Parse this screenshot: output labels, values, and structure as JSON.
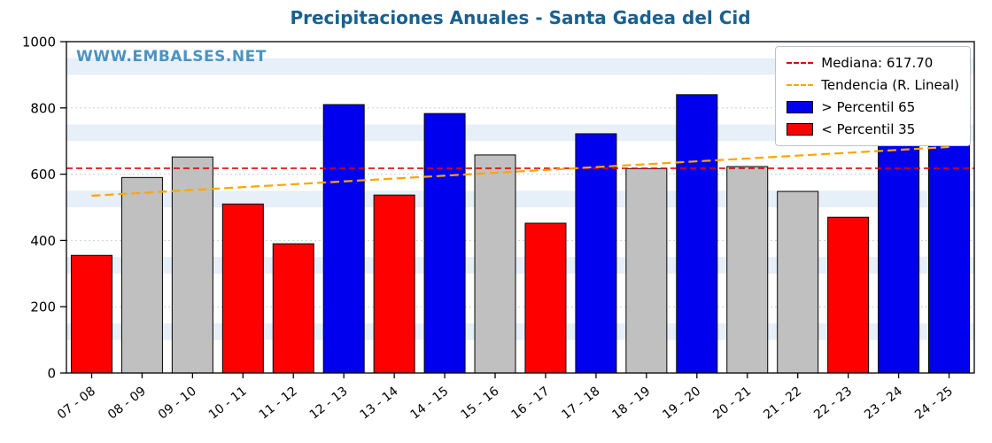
{
  "title": "Precipitaciones Anuales - Santa Gadea del Cid",
  "watermark": "WWW.EMBALSES.NET",
  "legend": {
    "median_label": "Mediana: 617.70",
    "trend_label": "Tendencia (R. Lineal)",
    "high_label": "> Percentil 65",
    "low_label": "< Percentil 35"
  },
  "colors": {
    "high": "#0000ee",
    "low": "#ff0000",
    "mid": "#c0c0c0",
    "median_line": "#e00000",
    "trend_line": "#ffa500",
    "title": "#19608f",
    "watermark": "#4a94c0",
    "band": "#e7eff8",
    "grid": "#c3d0dd",
    "axis": "#000000"
  },
  "chart_data": {
    "type": "bar",
    "title": "Precipitaciones Anuales - Santa Gadea del Cid",
    "xlabel": "",
    "ylabel": "",
    "categories": [
      "07 - 08",
      "08 - 09",
      "09 - 10",
      "10 - 11",
      "11 - 12",
      "12 - 13",
      "13 - 14",
      "14 - 15",
      "15 - 16",
      "16 - 17",
      "17 - 18",
      "18 - 19",
      "19 - 20",
      "20 - 21",
      "21 - 22",
      "22 - 23",
      "23 - 24",
      "24 - 25"
    ],
    "values": [
      355,
      590,
      652,
      510,
      390,
      810,
      537,
      783,
      658,
      452,
      722,
      617,
      840,
      623,
      548,
      470,
      690,
      743
    ],
    "classes": [
      "low",
      "mid",
      "mid",
      "low",
      "low",
      "high",
      "low",
      "high",
      "mid",
      "low",
      "high",
      "mid",
      "high",
      "mid",
      "mid",
      "low",
      "high",
      "high"
    ],
    "median": 617.7,
    "trend": {
      "start": 535,
      "end": 682
    },
    "ylim": [
      0,
      1000
    ],
    "yticks": [
      0,
      200,
      400,
      600,
      800,
      1000
    ],
    "bands": {
      "starts": [
        100,
        300,
        500,
        700,
        900
      ],
      "height": 50
    },
    "legend_position": "upper right",
    "legend_entries": [
      "Mediana: 617.70",
      "Tendencia (R. Lineal)",
      "> Percentil 65",
      "< Percentil 35"
    ],
    "grid": true
  }
}
